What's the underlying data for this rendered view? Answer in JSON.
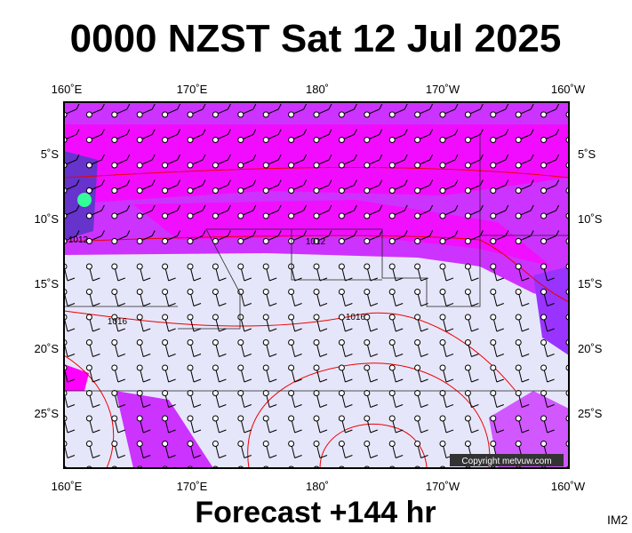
{
  "header": {
    "title": "0000 NZST Sat 12 Jul 2025"
  },
  "map": {
    "lon_labels": [
      "160˚E",
      "170˚E",
      "180˚",
      "170˚W",
      "160˚W"
    ],
    "lat_labels": [
      "5˚S",
      "10˚S",
      "15˚S",
      "20˚S",
      "25˚S"
    ],
    "isobar_labels": [
      "1012",
      "1012",
      "1016",
      "1016"
    ],
    "copyright": "Copyright metvuw.com"
  },
  "footer": {
    "forecast": "Forecast +144 hr",
    "code": "IM2"
  }
}
